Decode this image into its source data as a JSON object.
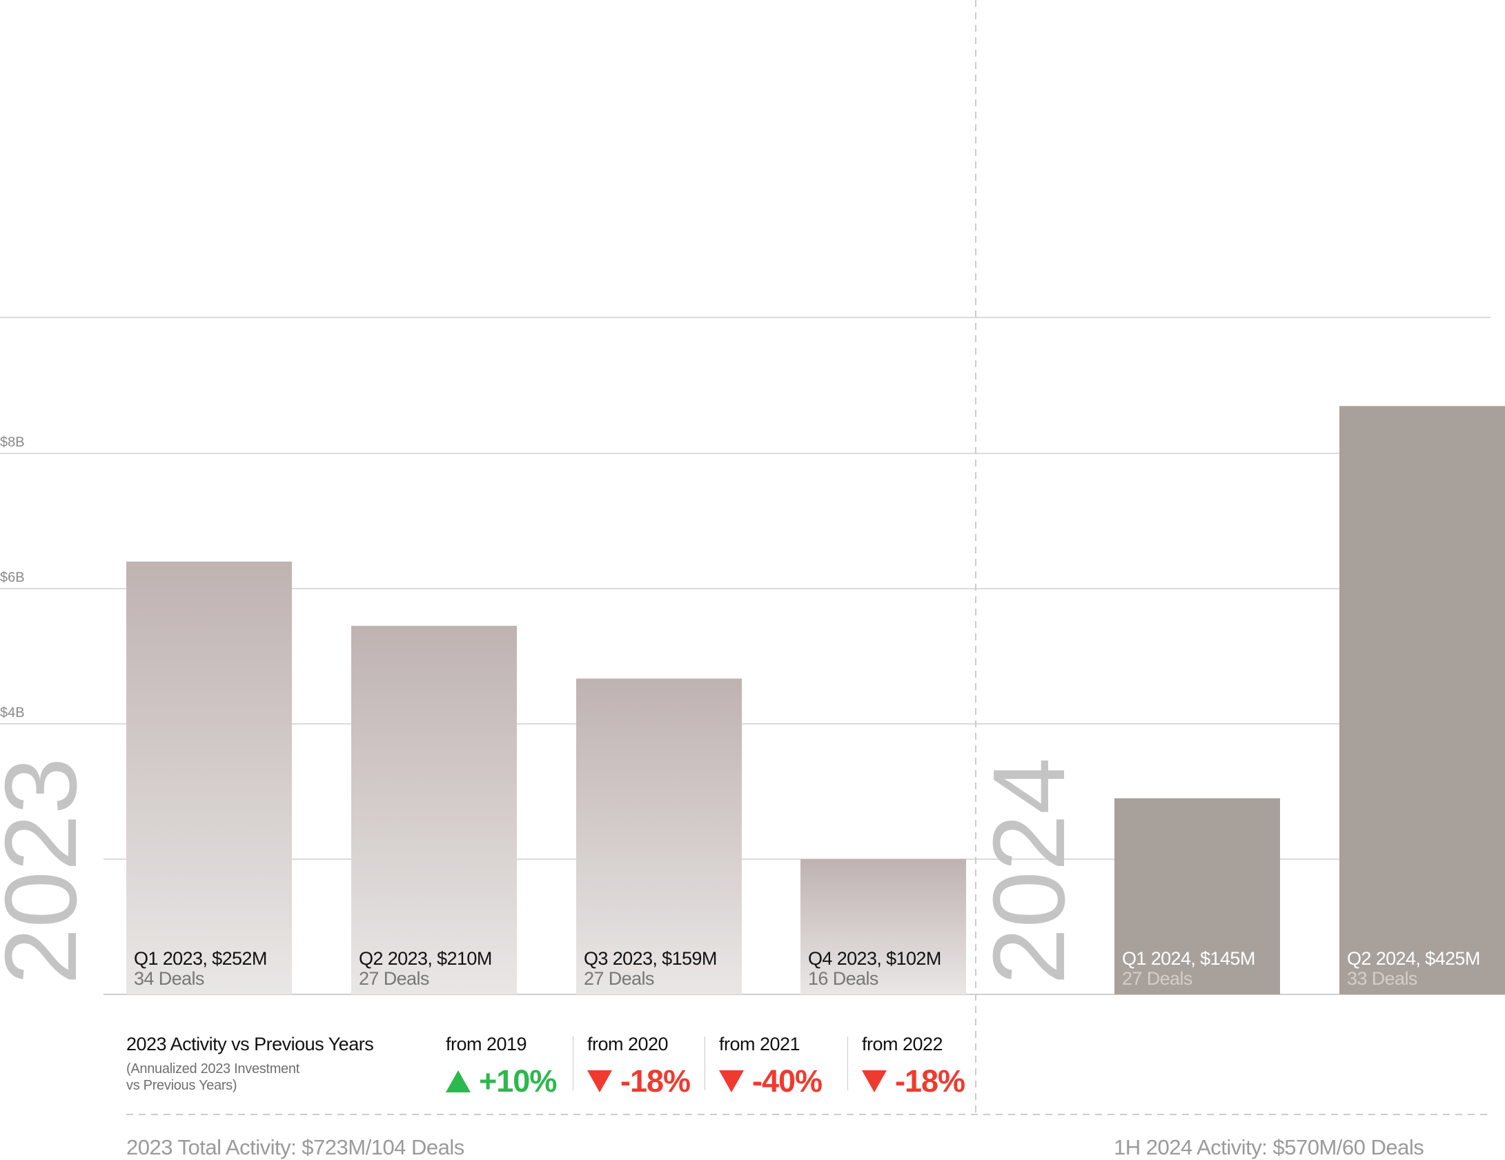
{
  "chart_data": {
    "type": "bar",
    "y_ticks": [
      "$8B",
      "$6B",
      "$4B"
    ],
    "year_labels": [
      "2023",
      "2024"
    ],
    "series": [
      {
        "year": "2023",
        "colors": {
          "top": "#bfb3b2",
          "bottom": "#e7e5e3"
        },
        "bars": [
          {
            "label": "Q1 2023, $252M",
            "deals": "34 Deals",
            "value": 6.4
          },
          {
            "label": "Q2 2023, $210M",
            "deals": "27 Deals",
            "value": 5.45
          },
          {
            "label": "Q3 2023, $159M",
            "deals": "27 Deals",
            "value": 4.67
          },
          {
            "label": "Q4 2023, $102M",
            "deals": "16 Deals",
            "value": 2.0
          }
        ]
      },
      {
        "year": "2024",
        "colors": {
          "top": "#a8a09b",
          "bottom": "#a8a09b"
        },
        "bars": [
          {
            "label": "Q1 2024, $145M",
            "deals": "27 Deals",
            "value": 2.9
          },
          {
            "label": "Q2 2024, $425M",
            "deals": "33 Deals",
            "value": 8.7
          }
        ]
      }
    ]
  },
  "comparison": {
    "title": "2023 Activity vs Previous Years",
    "subtitle_line1": "(Annualized 2023 Investment",
    "subtitle_line2": "vs Previous Years)",
    "items": [
      {
        "label": "from 2019",
        "value": "+10%",
        "direction": "up"
      },
      {
        "label": "from 2020",
        "value": "-18%",
        "direction": "down"
      },
      {
        "label": "from 2021",
        "value": "-40%",
        "direction": "down"
      },
      {
        "label": "from 2022",
        "value": "-18%",
        "direction": "down"
      }
    ]
  },
  "totals": {
    "total_2023": "2023 Total Activity: $723M/104 Deals",
    "total_2024": "1H 2024 Activity: $570M/60 Deals"
  },
  "colors": {
    "up": "#2db84d",
    "down": "#f03a2f",
    "grid": "#cfcfcf",
    "year_label": "#c4c4c4"
  }
}
